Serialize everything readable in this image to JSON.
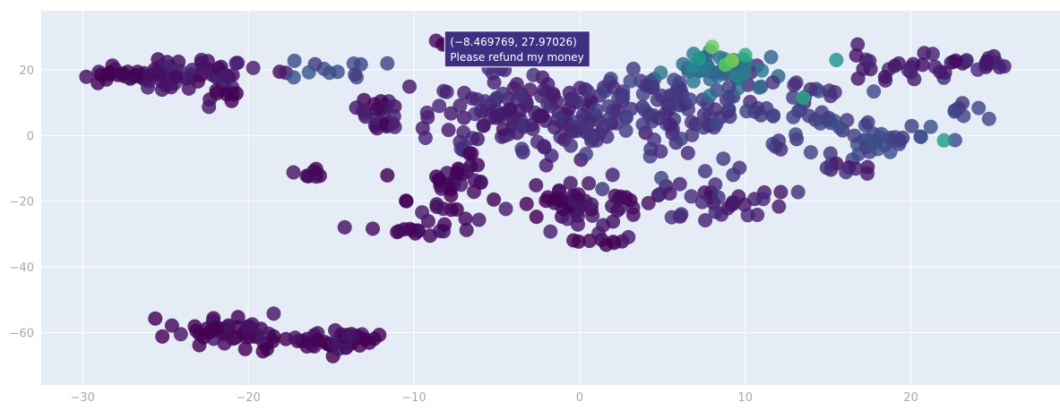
{
  "chart_data": {
    "type": "scatter",
    "title": "",
    "xlabel": "",
    "ylabel": "",
    "xlim": [
      -32.5,
      29
    ],
    "ylim": [
      -76,
      38
    ],
    "grid": true,
    "legend": "none",
    "x_ticks": [
      -30,
      -20,
      -10,
      0,
      10,
      20
    ],
    "y_ticks": [
      -60,
      -40,
      -20,
      0,
      20
    ],
    "tick_labels": {
      "x": [
        "−30",
        "−20",
        "−10",
        "0",
        "10",
        "20"
      ],
      "y": [
        "−60",
        "−40",
        "−20",
        "0",
        "20"
      ]
    },
    "colorscale": "viridis",
    "plot_bgcolor": "#e5ecf6",
    "gridcolor": "#ffffff",
    "tooltip": {
      "x": -8.469769,
      "y": 27.97026,
      "line1": "(−8.469769, 27.97026)",
      "line2": "Please refund my money",
      "bgcolor": "#3e2f83"
    },
    "clusters": [
      {
        "cx": -24.5,
        "cy": 19,
        "sx": 3.2,
        "sy": 2.6,
        "n": 70,
        "c": 0.07
      },
      {
        "cx": -28,
        "cy": 17.5,
        "sx": 1.2,
        "sy": 1.6,
        "n": 10,
        "c": 0.04
      },
      {
        "cx": -21.5,
        "cy": 13,
        "sx": 1.2,
        "sy": 2.2,
        "n": 10,
        "c": 0.03
      },
      {
        "cx": -15,
        "cy": 19.5,
        "sx": 1.8,
        "sy": 1.6,
        "n": 12,
        "c": 0.25
      },
      {
        "cx": -12,
        "cy": 7,
        "sx": 1.1,
        "sy": 5.5,
        "n": 22,
        "c": 0.05
      },
      {
        "cx": -16.3,
        "cy": -11.5,
        "sx": 0.7,
        "sy": 0.9,
        "n": 8,
        "c": 0.05
      },
      {
        "cx": -10,
        "cy": -29,
        "sx": 1.5,
        "sy": 1.1,
        "n": 14,
        "c": 0.05
      },
      {
        "cx": -20.5,
        "cy": -60,
        "sx": 2.5,
        "sy": 2.6,
        "n": 45,
        "c": 0.02
      },
      {
        "cx": -14.5,
        "cy": -62.5,
        "sx": 1.7,
        "sy": 2.6,
        "n": 35,
        "c": 0.02
      },
      {
        "cx": -22.8,
        "cy": -60.5,
        "sx": 0.5,
        "sy": 1.6,
        "n": 5,
        "c": 0.01
      },
      {
        "cx": -4,
        "cy": 6,
        "sx": 4.2,
        "sy": 8.5,
        "n": 140,
        "c": 0.12
      },
      {
        "cx": -7.5,
        "cy": -17,
        "sx": 1.8,
        "sy": 6,
        "n": 35,
        "c": 0.02
      },
      {
        "cx": -0.5,
        "cy": -20,
        "sx": 2.8,
        "sy": 5,
        "n": 55,
        "c": 0.04
      },
      {
        "cx": 0.5,
        "cy": -32,
        "sx": 2,
        "sy": 1.4,
        "n": 10,
        "c": 0.03
      },
      {
        "cx": 5,
        "cy": 8,
        "sx": 4,
        "sy": 9,
        "n": 110,
        "c": 0.18
      },
      {
        "cx": 8.5,
        "cy": 20,
        "sx": 2.5,
        "sy": 3.5,
        "n": 45,
        "c": 0.42
      },
      {
        "cx": 8.5,
        "cy": -20,
        "sx": 2.5,
        "sy": 4,
        "n": 30,
        "c": 0.1
      },
      {
        "cx": 13.5,
        "cy": 6,
        "sx": 2.5,
        "sy": 9,
        "n": 40,
        "c": 0.2
      },
      {
        "cx": 18.5,
        "cy": -1.5,
        "sx": 2.3,
        "sy": 3,
        "n": 30,
        "c": 0.24
      },
      {
        "cx": 16.5,
        "cy": -10,
        "sx": 1.2,
        "sy": 1.7,
        "n": 8,
        "c": 0.1
      },
      {
        "cx": 19.5,
        "cy": 21,
        "sx": 2.2,
        "sy": 2.4,
        "n": 22,
        "c": 0.1
      },
      {
        "cx": 23.5,
        "cy": 22,
        "sx": 1.6,
        "sy": 2.2,
        "n": 18,
        "c": 0.08
      },
      {
        "cx": 23,
        "cy": 8,
        "sx": 1,
        "sy": 3.5,
        "n": 7,
        "c": 0.22
      },
      {
        "cx": -8.7,
        "cy": 27.6,
        "sx": 0.6,
        "sy": 0.6,
        "n": 4,
        "c": 0.05
      }
    ],
    "highlights": [
      {
        "x": 8,
        "y": 27,
        "c": 0.88
      },
      {
        "x": 9.2,
        "y": 22.8,
        "c": 0.92
      },
      {
        "x": 10,
        "y": 24.5,
        "c": 0.72
      },
      {
        "x": 8.8,
        "y": 21.5,
        "c": 0.84
      },
      {
        "x": 7.2,
        "y": 23.5,
        "c": 0.62
      },
      {
        "x": 13.5,
        "y": 11.5,
        "c": 0.68
      },
      {
        "x": 22,
        "y": -1.5,
        "c": 0.62
      },
      {
        "x": 15.5,
        "y": 23,
        "c": 0.58
      },
      {
        "x": 6.8,
        "y": 21,
        "c": 0.52
      },
      {
        "x": 11,
        "y": 19.8,
        "c": 0.45
      }
    ]
  }
}
